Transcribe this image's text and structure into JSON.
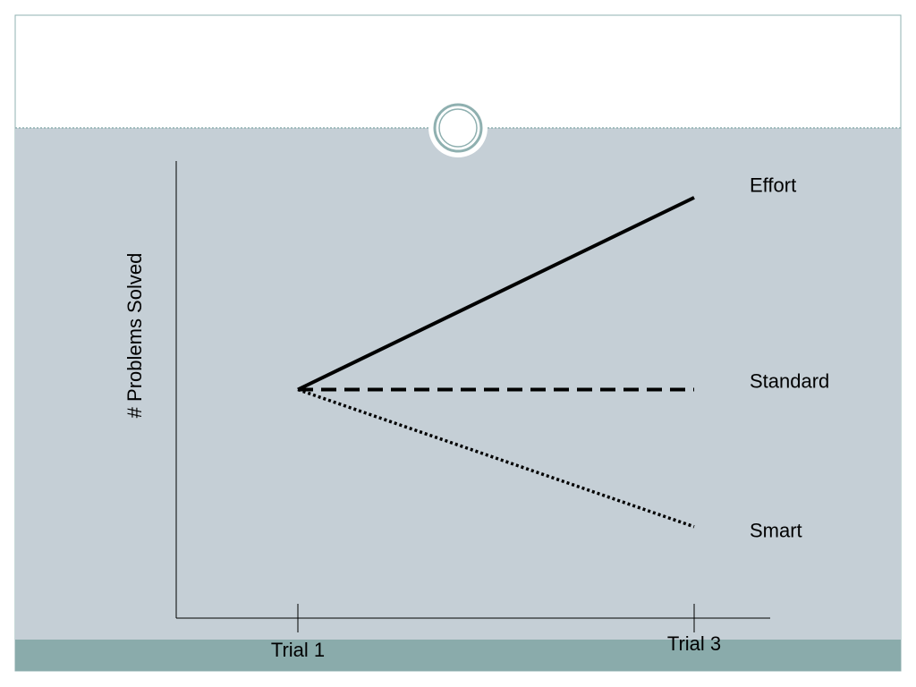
{
  "chart_data": {
    "type": "line",
    "y_label": "# Problems Solved",
    "categories": [
      "Trial 1",
      "Trial 3"
    ],
    "ylim": [
      0,
      100
    ],
    "series": [
      {
        "name": "Effort",
        "color": "#000000",
        "dash": "solid",
        "values": [
          50,
          92
        ]
      },
      {
        "name": "Standard",
        "color": "#000000",
        "dash": "dashed",
        "values": [
          50,
          50
        ]
      },
      {
        "name": "Smart",
        "color": "#000000",
        "dash": "dotted",
        "values": [
          50,
          20
        ]
      }
    ]
  }
}
